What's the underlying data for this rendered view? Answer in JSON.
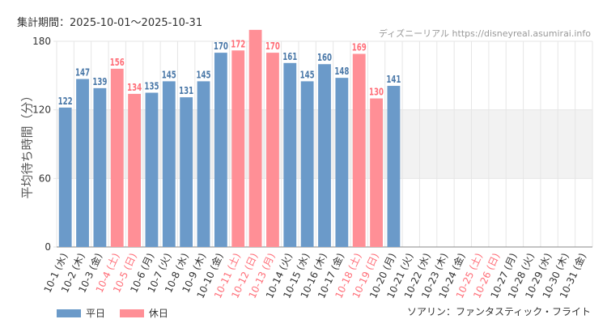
{
  "header": {
    "period": "集計期間：2025-10-01〜2025-10-31",
    "credit": "ディズニーリアル https://disneyreal.asumirai.info"
  },
  "footer": {
    "attraction": "ソアリン：ファンタスティック・フライト"
  },
  "colors": {
    "weekday": "#6b9ac9",
    "holiday": "#ff8f96",
    "weekday_label": "#4a78a8",
    "holiday_label": "#ff6e78",
    "axis_text": "#333333",
    "holiday_text": "#ff6e78",
    "band": "#f2f2f2",
    "grid": "#e6e6e6"
  },
  "chart_data": {
    "type": "bar",
    "ylabel": "平均待ち時間（分）",
    "ylim": [
      0,
      180
    ],
    "yticks": [
      0,
      60,
      120,
      180
    ],
    "shaded_band": [
      60,
      120
    ],
    "legend": [
      {
        "key": "weekday",
        "label": "平日"
      },
      {
        "key": "holiday",
        "label": "休日"
      }
    ],
    "categories": [
      "10-1 (水)",
      "10-2 (木)",
      "10-3 (金)",
      "10-4 (土)",
      "10-5 (日)",
      "10-6 (月)",
      "10-7 (火)",
      "10-8 (水)",
      "10-9 (木)",
      "10-10 (金)",
      "10-11 (土)",
      "10-12 (日)",
      "10-13 (月)",
      "10-14 (火)",
      "10-15 (水)",
      "10-16 (木)",
      "10-17 (金)",
      "10-18 (土)",
      "10-19 (日)",
      "10-20 (月)",
      "10-21 (火)",
      "10-22 (水)",
      "10-23 (木)",
      "10-24 (金)",
      "10-25 (土)",
      "10-26 (日)",
      "10-27 (月)",
      "10-28 (火)",
      "10-29 (水)",
      "10-30 (木)",
      "10-31 (金)"
    ],
    "day_type": [
      "weekday",
      "weekday",
      "weekday",
      "holiday",
      "holiday",
      "weekday",
      "weekday",
      "weekday",
      "weekday",
      "weekday",
      "holiday",
      "holiday",
      "holiday",
      "weekday",
      "weekday",
      "weekday",
      "weekday",
      "holiday",
      "holiday",
      "weekday",
      "weekday",
      "weekday",
      "weekday",
      "weekday",
      "holiday",
      "holiday",
      "weekday",
      "weekday",
      "weekday",
      "weekday",
      "weekday"
    ],
    "values": [
      122,
      147,
      139,
      156,
      134,
      135,
      145,
      131,
      145,
      170,
      172,
      190,
      170,
      161,
      145,
      160,
      148,
      169,
      130,
      141,
      null,
      null,
      null,
      null,
      null,
      null,
      null,
      null,
      null,
      null,
      null
    ],
    "value_labels": [
      "122",
      "147",
      "139",
      "156",
      "134",
      "135",
      "145",
      "131",
      "145",
      "170",
      "172",
      "",
      "170",
      "161",
      "145",
      "160",
      "148",
      "169",
      "130",
      "141",
      "",
      "",
      "",
      "",
      "",
      "",
      "",
      "",
      "",
      "",
      ""
    ]
  }
}
